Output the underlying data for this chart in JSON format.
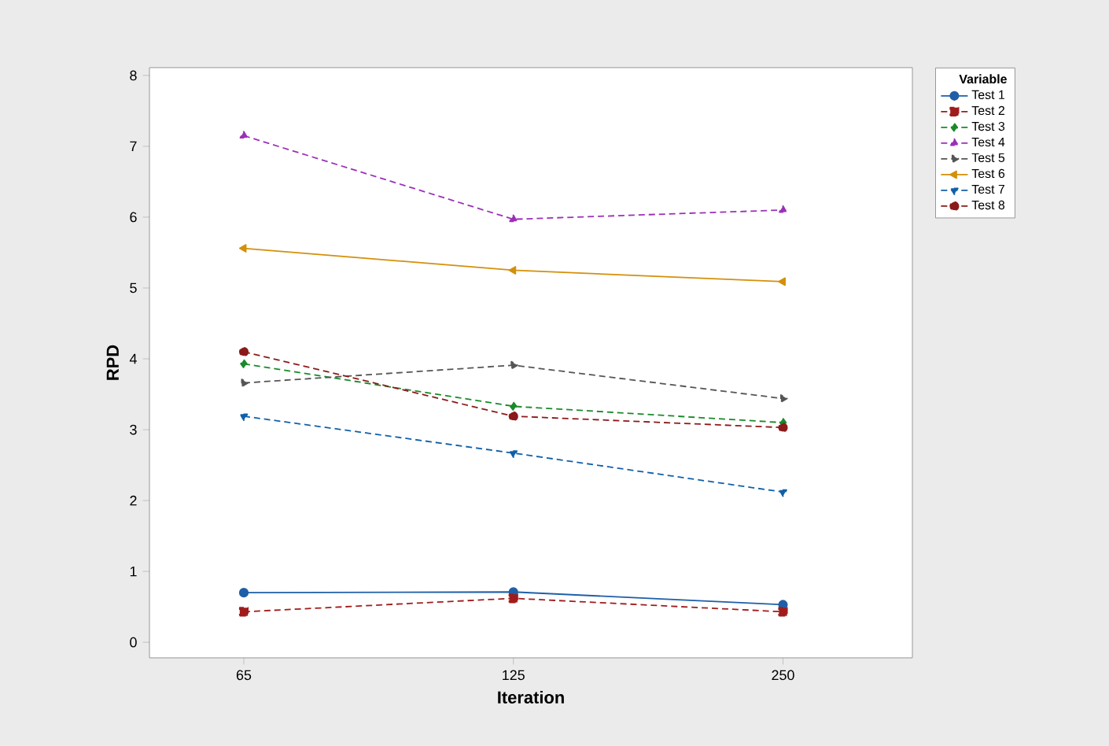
{
  "chart_data": {
    "type": "line",
    "xlabel": "Iteration",
    "ylabel": "RPD",
    "legend_title": "Variable",
    "categories": [
      "65",
      "125",
      "250"
    ],
    "ylim": [
      -0.22,
      8.11
    ],
    "yticks": [
      0,
      1,
      2,
      3,
      4,
      5,
      6,
      7,
      8
    ],
    "legend": "right",
    "grid": false,
    "series": [
      {
        "name": "Test 1",
        "color": "#1f5fa8",
        "marker": "circle",
        "line_style": "solid",
        "values": [
          0.7,
          0.71,
          0.53
        ]
      },
      {
        "name": "Test 2",
        "color": "#a01c1c",
        "marker": "square",
        "line_style": "dashed",
        "values": [
          0.43,
          0.62,
          0.43
        ]
      },
      {
        "name": "Test 3",
        "color": "#1a8a2a",
        "marker": "diamond",
        "line_style": "dashed",
        "values": [
          3.93,
          3.33,
          3.1
        ]
      },
      {
        "name": "Test 4",
        "color": "#9b30b8",
        "marker": "triangle",
        "line_style": "dashed",
        "values": [
          7.15,
          5.97,
          6.1
        ]
      },
      {
        "name": "Test 5",
        "color": "#555555",
        "marker": "triangle-right",
        "line_style": "dashed",
        "values": [
          3.66,
          3.91,
          3.44
        ]
      },
      {
        "name": "Test 6",
        "color": "#d4900a",
        "marker": "triangle-left",
        "line_style": "solid",
        "values": [
          5.56,
          5.25,
          5.09
        ]
      },
      {
        "name": "Test 7",
        "color": "#1060a8",
        "marker": "triangle-down",
        "line_style": "dashed",
        "values": [
          3.19,
          2.67,
          2.12
        ]
      },
      {
        "name": "Test 8",
        "color": "#8b1a1a",
        "marker": "circle",
        "line_style": "dashed",
        "values": [
          4.1,
          3.19,
          3.03
        ]
      }
    ]
  }
}
